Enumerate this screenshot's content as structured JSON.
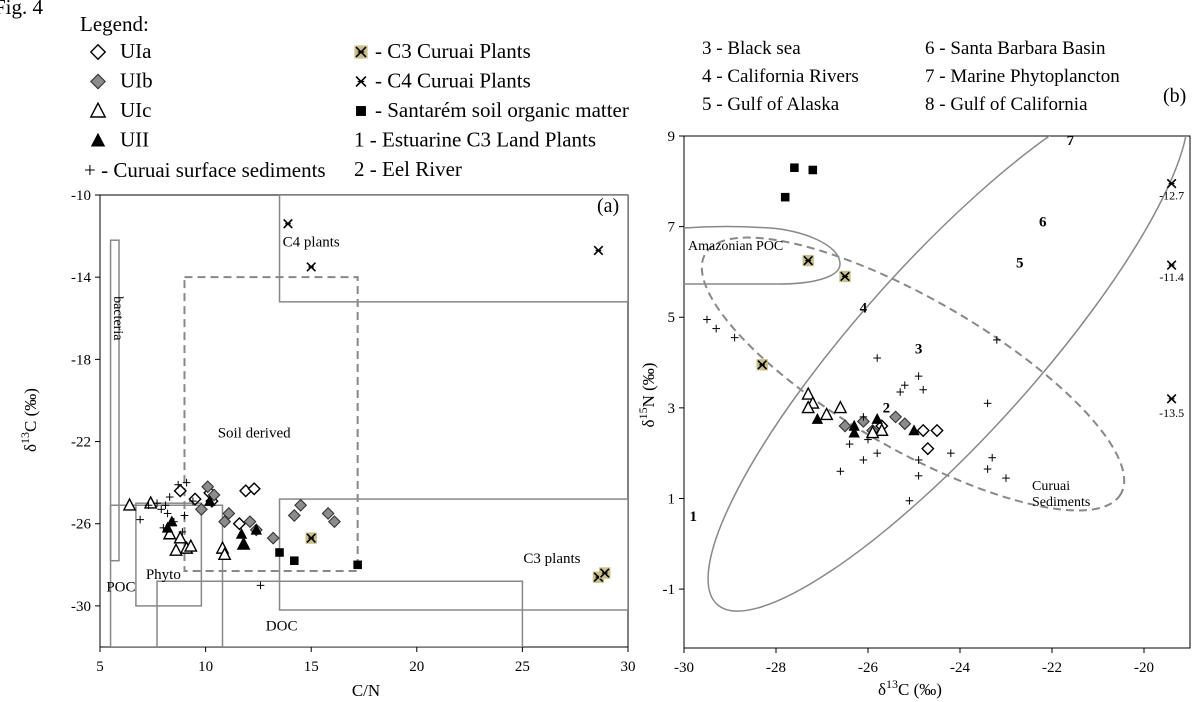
{
  "figure": {
    "fig_label": "Fig. 4",
    "legend_title": "Legend:",
    "legend_left": [
      {
        "marker": "diamond-open",
        "text": "UIa"
      },
      {
        "marker": "diamond-gray",
        "text": "UIb"
      },
      {
        "marker": "triangle-open",
        "text": "UIc"
      },
      {
        "marker": "triangle-filled",
        "text": "UII"
      },
      {
        "marker": "plus",
        "text": "+ - Curuai surface sediments"
      }
    ],
    "legend_mid": [
      {
        "marker": "c3-star",
        "text": "- C3 Curuai Plants"
      },
      {
        "marker": "c4-star",
        "text": "- C4 Curuai Plants"
      },
      {
        "marker": "square",
        "text": "- Santarém soil organic matter"
      },
      {
        "marker": "none",
        "text": "1 - Estuarine C3 Land Plants"
      },
      {
        "marker": "none",
        "text": "2 - Eel River"
      }
    ],
    "legend_right_col1": [
      "3 - Black sea",
      "4 - California Rivers",
      "5 - Gulf of Alaska"
    ],
    "legend_right_col2": [
      "6 - Santa Barbara Basin",
      "7 - Marine Phytoplancton",
      "8 - Gulf of California"
    ]
  },
  "chart_data": [
    {
      "type": "scatter",
      "panel_label": "(a)",
      "xlabel": "C/N",
      "ylabel": "δ13C (‰)",
      "xlim": [
        5,
        30
      ],
      "ylim": [
        -32,
        -10
      ],
      "xticks": [
        5,
        10,
        15,
        20,
        25,
        30
      ],
      "yticks": [
        -10,
        -14,
        -18,
        -22,
        -26,
        -30
      ],
      "grid": false,
      "regions": [
        {
          "label": "C4 plants",
          "style": "solid",
          "x": [
            13.5,
            30
          ],
          "y": [
            -15.2,
            -10
          ]
        },
        {
          "label": "Soil derived",
          "style": "dashed",
          "x": [
            9,
            17.2
          ],
          "y": [
            -28.3,
            -14
          ]
        },
        {
          "label": "C3 plants",
          "style": "solid",
          "x": [
            13.5,
            30
          ],
          "y": [
            -30.2,
            -24.8
          ]
        },
        {
          "label": "bacteria",
          "style": "solid",
          "x": [
            5.5,
            5.9
          ],
          "y": [
            -27.8,
            -12.2
          ]
        },
        {
          "label": "POC",
          "style": "solid",
          "x": [
            5.5,
            10.8
          ],
          "y": [
            -32,
            -25.1
          ]
        },
        {
          "label": "Phyto",
          "style": "solid",
          "x": [
            6.7,
            9.8
          ],
          "y": [
            -30,
            -25
          ]
        },
        {
          "label": "DOC",
          "style": "solid",
          "x": [
            7.7,
            25
          ],
          "y": [
            -32,
            -28.8
          ]
        }
      ],
      "series": [
        {
          "name": "UIa",
          "marker": "diamond-open",
          "points": [
            [
              8.8,
              -24.4
            ],
            [
              9.5,
              -24.8
            ],
            [
              10.2,
              -24.5
            ],
            [
              11.9,
              -24.4
            ],
            [
              12.3,
              -24.3
            ],
            [
              10.3,
              -24.9
            ],
            [
              11.6,
              -26.0
            ]
          ]
        },
        {
          "name": "UIb",
          "marker": "diamond-gray",
          "points": [
            [
              9.8,
              -25.3
            ],
            [
              10.1,
              -24.2
            ],
            [
              10.4,
              -24.6
            ],
            [
              10.9,
              -25.9
            ],
            [
              11.1,
              -25.5
            ],
            [
              12.1,
              -25.9
            ],
            [
              12.4,
              -26.3
            ],
            [
              13.2,
              -26.7
            ],
            [
              14.2,
              -25.6
            ],
            [
              14.5,
              -25.1
            ],
            [
              15.8,
              -25.5
            ],
            [
              16.1,
              -25.9
            ]
          ]
        },
        {
          "name": "UIc",
          "marker": "triangle-open",
          "points": [
            [
              6.4,
              -25.1
            ],
            [
              7.4,
              -25.0
            ],
            [
              8.3,
              -26.5
            ],
            [
              8.8,
              -26.7
            ],
            [
              8.6,
              -27.3
            ],
            [
              9.1,
              -27.2
            ],
            [
              9.3,
              -27.1
            ],
            [
              10.8,
              -27.2
            ],
            [
              10.9,
              -27.5
            ],
            [
              11.8,
              -27.0
            ]
          ]
        },
        {
          "name": "UII",
          "marker": "triangle-filled",
          "points": [
            [
              8.2,
              -26.2
            ],
            [
              8.4,
              -25.9
            ],
            [
              10.2,
              -24.9
            ],
            [
              11.7,
              -26.5
            ],
            [
              11.8,
              -27.0
            ],
            [
              12.4,
              -26.3
            ]
          ]
        },
        {
          "name": "Curuai surface sediments",
          "marker": "plus",
          "points": [
            [
              7.3,
              -25.1
            ],
            [
              7.7,
              -25.0
            ],
            [
              7.9,
              -25.3
            ],
            [
              8.1,
              -25.1
            ],
            [
              8.2,
              -25.5
            ],
            [
              8.3,
              -24.7
            ],
            [
              8.5,
              -25.9
            ],
            [
              8.7,
              -24.1
            ],
            [
              8.9,
              -26.4
            ],
            [
              9.0,
              -25.6
            ],
            [
              9.1,
              -24.0
            ],
            [
              9.4,
              -24.9
            ],
            [
              8.0,
              -26.2
            ],
            [
              12.6,
              -29.0
            ],
            [
              6.9,
              -25.8
            ]
          ]
        },
        {
          "name": "C3 Curuai Plants",
          "marker": "c3-star",
          "points": [
            [
              15.0,
              -26.7
            ],
            [
              28.6,
              -28.6
            ],
            [
              28.9,
              -28.4
            ]
          ]
        },
        {
          "name": "C4 Curuai Plants",
          "marker": "c4-star",
          "points": [
            [
              13.9,
              -11.4
            ],
            [
              15.0,
              -13.5
            ],
            [
              28.6,
              -12.7
            ]
          ]
        },
        {
          "name": "Santarém soil organic matter",
          "marker": "square",
          "points": [
            [
              13.5,
              -27.4
            ],
            [
              14.2,
              -27.8
            ],
            [
              17.2,
              -28.0
            ]
          ]
        }
      ]
    },
    {
      "type": "scatter",
      "panel_label": "(b)",
      "xlabel": "δ13C (‰)",
      "ylabel": "δ15N (‰)",
      "xlim": [
        -30,
        -19
      ],
      "ylim": [
        -2.3,
        9
      ],
      "xticks": [
        -30,
        -28,
        -26,
        -24,
        -22,
        -20
      ],
      "yticks": [
        9,
        7,
        5,
        3,
        1,
        -1
      ],
      "grid": false,
      "regions": [
        {
          "label": "Amazonian POC",
          "style": "solid-ellipse"
        },
        {
          "label": "Curuai Sediments",
          "style": "dashed-ellipse"
        },
        {
          "label": "",
          "style": "solid-ellipse-large"
        }
      ],
      "region_numbers": [
        {
          "label": "1",
          "x": -29.8,
          "y": 0.5
        },
        {
          "label": "2",
          "x": -25.6,
          "y": 2.9
        },
        {
          "label": "3",
          "x": -24.9,
          "y": 4.2
        },
        {
          "label": "4",
          "x": -26.1,
          "y": 5.1
        },
        {
          "label": "5",
          "x": -22.7,
          "y": 6.1
        },
        {
          "label": "6",
          "x": -22.2,
          "y": 7.0
        },
        {
          "label": "7",
          "x": -21.6,
          "y": 8.8
        }
      ],
      "point_labels": [
        {
          "text": "-12.7",
          "x": -19.4,
          "y": 7.6
        },
        {
          "text": "-11.4",
          "x": -19.4,
          "y": 5.8
        },
        {
          "text": "-13.5",
          "x": -19.4,
          "y": 2.8
        }
      ],
      "series": [
        {
          "name": "UIa",
          "marker": "diamond-open",
          "points": [
            [
              -24.8,
              2.5
            ],
            [
              -24.5,
              2.5
            ],
            [
              -24.7,
              2.1
            ],
            [
              -25.7,
              2.6
            ]
          ]
        },
        {
          "name": "UIb",
          "marker": "diamond-gray",
          "points": [
            [
              -26.5,
              2.6
            ],
            [
              -26.1,
              2.7
            ],
            [
              -25.4,
              2.8
            ],
            [
              -25.2,
              2.65
            ],
            [
              -25.9,
              2.5
            ]
          ]
        },
        {
          "name": "UIc",
          "marker": "triangle-open",
          "points": [
            [
              -27.3,
              3.3
            ],
            [
              -27.2,
              3.1
            ],
            [
              -27.3,
              3.0
            ],
            [
              -26.9,
              2.85
            ],
            [
              -26.6,
              3.0
            ],
            [
              -25.7,
              2.5
            ],
            [
              -25.9,
              2.45
            ]
          ]
        },
        {
          "name": "UII",
          "marker": "triangle-filled",
          "points": [
            [
              -27.1,
              2.75
            ],
            [
              -26.3,
              2.6
            ],
            [
              -25.8,
              2.75
            ],
            [
              -25.0,
              2.5
            ],
            [
              -26.3,
              2.45
            ]
          ]
        },
        {
          "name": "Curuai surface sediments",
          "marker": "plus",
          "points": [
            [
              -29.5,
              4.95
            ],
            [
              -29.3,
              4.75
            ],
            [
              -28.9,
              4.55
            ],
            [
              -25.8,
              4.1
            ],
            [
              -25.3,
              3.35
            ],
            [
              -25.2,
              3.5
            ],
            [
              -24.9,
              3.7
            ],
            [
              -24.8,
              3.4
            ],
            [
              -23.2,
              4.5
            ],
            [
              -26.1,
              2.8
            ],
            [
              -26.0,
              2.3
            ],
            [
              -26.4,
              2.2
            ],
            [
              -26.1,
              1.85
            ],
            [
              -25.8,
              2.0
            ],
            [
              -26.6,
              1.6
            ],
            [
              -24.9,
              1.5
            ],
            [
              -24.2,
              2.0
            ],
            [
              -23.4,
              3.1
            ],
            [
              -23.3,
              1.9
            ],
            [
              -23.4,
              1.65
            ],
            [
              -23.0,
              1.45
            ],
            [
              -24.9,
              1.85
            ],
            [
              -25.1,
              0.95
            ]
          ]
        },
        {
          "name": "C3 Curuai Plants",
          "marker": "c3-star",
          "points": [
            [
              -27.3,
              6.25
            ],
            [
              -26.5,
              5.9
            ],
            [
              -28.3,
              3.95
            ]
          ]
        },
        {
          "name": "C4 Curuai Plants",
          "marker": "c4-star",
          "points": [
            [
              -19.4,
              7.95
            ],
            [
              -19.4,
              6.15
            ],
            [
              -19.4,
              3.2
            ]
          ]
        },
        {
          "name": "Santarém soil organic matter",
          "marker": "square",
          "points": [
            [
              -27.6,
              8.3
            ],
            [
              -27.2,
              8.25
            ],
            [
              -27.8,
              7.65
            ]
          ]
        }
      ]
    }
  ]
}
